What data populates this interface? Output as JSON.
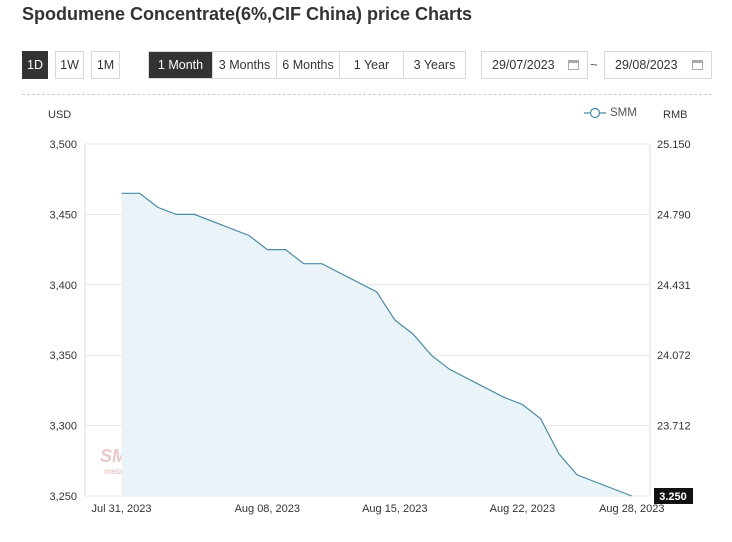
{
  "page": {
    "title": "Spodumene Concentrate(6%,CIF China) price Charts"
  },
  "toolbar": {
    "interval_buttons": [
      {
        "label": "1D",
        "active": true
      },
      {
        "label": "1W",
        "active": false
      },
      {
        "label": "1M",
        "active": false
      }
    ],
    "range_buttons": [
      {
        "label": "1 Month",
        "active": true
      },
      {
        "label": "3 Months",
        "active": false
      },
      {
        "label": "6 Months",
        "active": false
      },
      {
        "label": "1 Year",
        "active": false
      },
      {
        "label": "3 Years",
        "active": false
      }
    ],
    "date_from": "29/07/2023",
    "date_separator": "~",
    "date_to": "29/08/2023"
  },
  "colors": {
    "line": "#4a8aa6",
    "area": "#eaf3f7",
    "grid": "#e6e6e6",
    "active_button": "#333333"
  },
  "watermark": {
    "logo_text": "SMM",
    "sub_text": "metal.com"
  },
  "chart_data": {
    "type": "area",
    "left_axis_label": "USD",
    "right_axis_label": "RMB",
    "legend": [
      "SMM"
    ],
    "legend_position": "top-right",
    "ylim": [
      3250,
      3500
    ],
    "y_ticks": [
      "3,500",
      "3,450",
      "3,400",
      "3,350",
      "3,300",
      "3,250"
    ],
    "right_y_ticks": [
      "25.150",
      "24.790",
      "24.431",
      "24.072",
      "23.712",
      "3.250"
    ],
    "x_tick_labels": [
      "Jul 31, 2023",
      "Aug 08, 2023",
      "Aug 15, 2023",
      "Aug 22, 2023",
      "Aug 28, 2023"
    ],
    "current_value_label": "3.250",
    "series": [
      {
        "name": "SMM",
        "x": [
          "2023-07-31",
          "2023-08-01",
          "2023-08-02",
          "2023-08-03",
          "2023-08-04",
          "2023-08-07",
          "2023-08-08",
          "2023-08-09",
          "2023-08-10",
          "2023-08-11",
          "2023-08-14",
          "2023-08-15",
          "2023-08-16",
          "2023-08-17",
          "2023-08-18",
          "2023-08-21",
          "2023-08-22",
          "2023-08-23",
          "2023-08-24",
          "2023-08-25",
          "2023-08-28"
        ],
        "values": [
          3465,
          3465,
          3455,
          3450,
          3450,
          3435,
          3425,
          3425,
          3415,
          3415,
          3395,
          3375,
          3365,
          3350,
          3340,
          3320,
          3315,
          3305,
          3280,
          3265,
          3250
        ]
      }
    ]
  }
}
